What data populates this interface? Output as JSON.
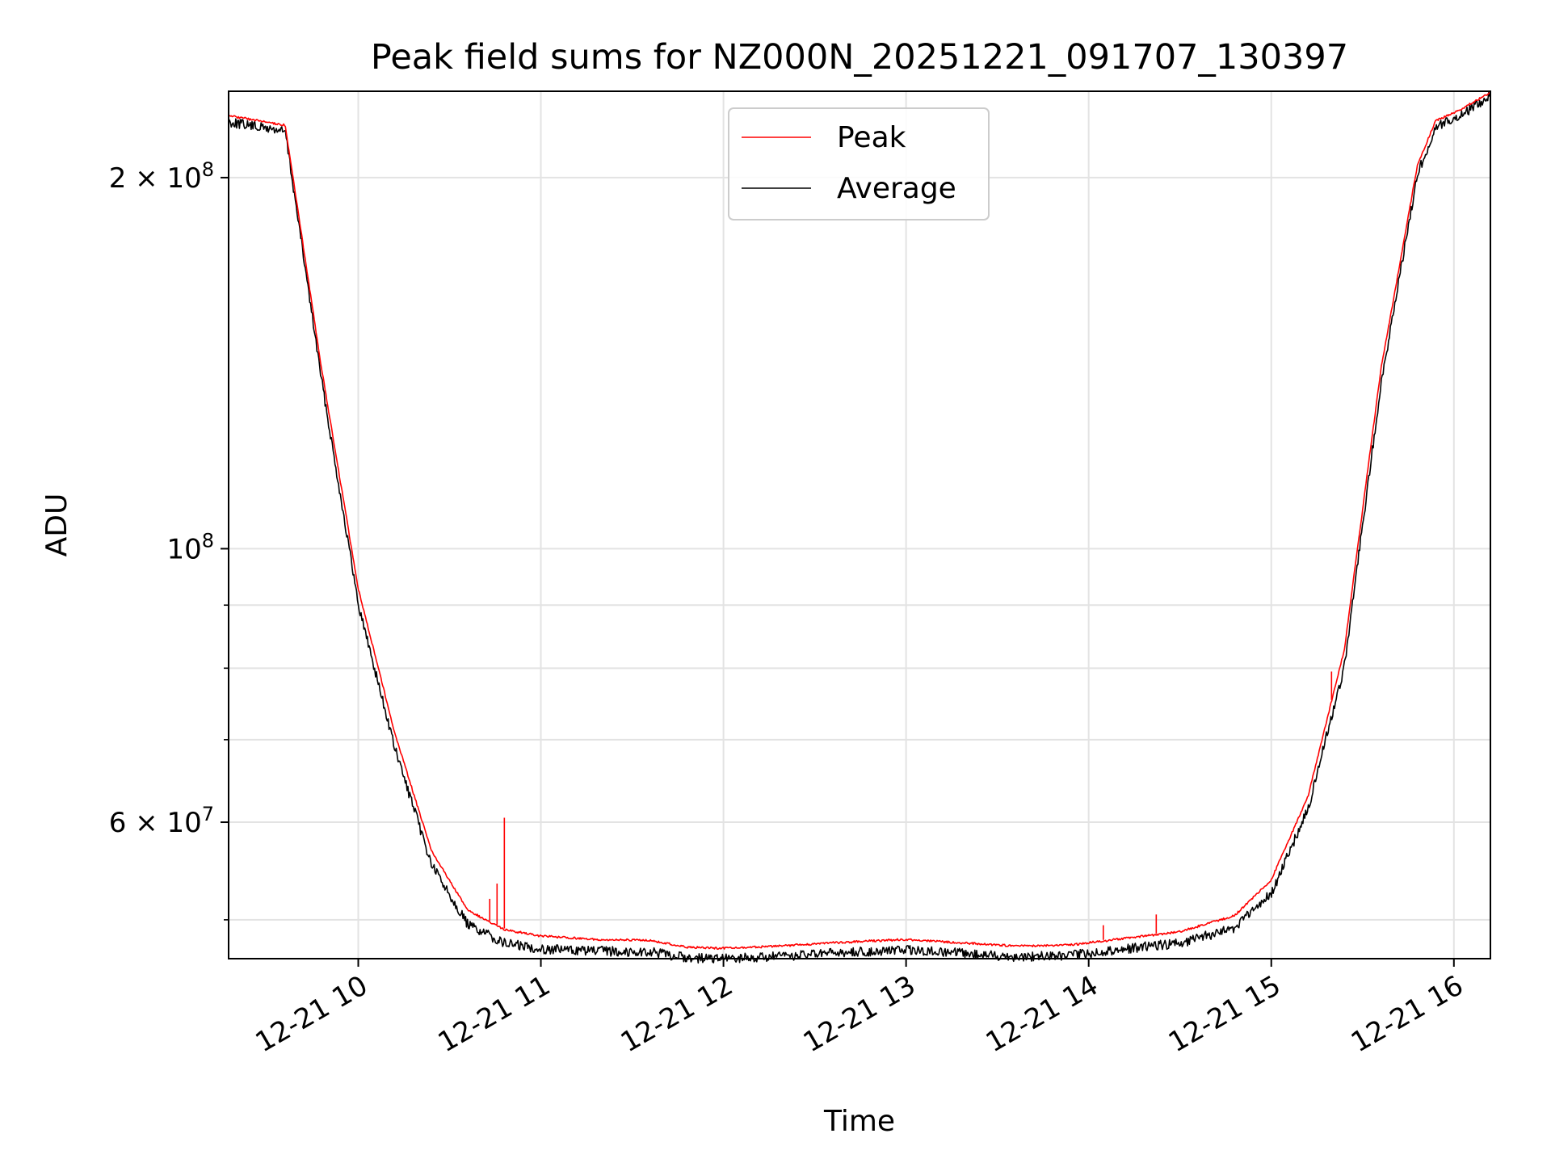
{
  "chart_data": {
    "type": "line",
    "title": "Peak field sums for NZ000N_20251221_091707_130397",
    "xlabel": "Time",
    "ylabel": "ADU",
    "yscale": "log",
    "xlim_hours": [
      9.29,
      16.2
    ],
    "ylim": [
      46500000,
      235000000
    ],
    "grid": true,
    "legend_position": "upper center",
    "x_ticks": [
      {
        "value": 10,
        "label": "12-21 10"
      },
      {
        "value": 11,
        "label": "12-21 11"
      },
      {
        "value": 12,
        "label": "12-21 12"
      },
      {
        "value": 13,
        "label": "12-21 13"
      },
      {
        "value": 14,
        "label": "12-21 14"
      },
      {
        "value": 15,
        "label": "12-21 15"
      },
      {
        "value": 16,
        "label": "12-21 16"
      }
    ],
    "y_ticks_labeled": [
      {
        "value": 200000000,
        "mantissa": "2",
        "exponent": "8",
        "label": "2 × 10^8"
      },
      {
        "value": 100000000,
        "mantissa": "",
        "exponent": "8",
        "label": "10^8"
      },
      {
        "value": 60000000,
        "mantissa": "6",
        "exponent": "7",
        "label": "6 × 10^7"
      }
    ],
    "y_ticks_minor": [
      50000000,
      70000000,
      80000000,
      90000000
    ],
    "series": [
      {
        "name": "Peak",
        "color": "#ff0000",
        "role": "peak",
        "x_hours": [
          9.29,
          9.6,
          9.8,
          10.0,
          10.2,
          10.4,
          10.6,
          10.8,
          11.0,
          11.3,
          11.6,
          11.8,
          12.0,
          12.3,
          12.6,
          13.0,
          13.3,
          13.6,
          13.9,
          14.2,
          14.5,
          14.8,
          15.0,
          15.2,
          15.4,
          15.6,
          15.8,
          15.9,
          16.0,
          16.2
        ],
        "values": [
          225000000,
          221000000,
          140000000,
          93000000,
          71000000,
          57000000,
          51000000,
          49200000,
          48600000,
          48300000,
          48200000,
          47600000,
          47500000,
          47700000,
          48000000,
          48300000,
          48000000,
          47700000,
          47800000,
          48400000,
          49000000,
          50500000,
          54000000,
          63000000,
          83000000,
          140000000,
          205000000,
          223000000,
          226000000,
          235000000
        ],
        "spikes": [
          {
            "x_hours": 10.72,
            "value": 52000000
          },
          {
            "x_hours": 10.76,
            "value": 53500000
          },
          {
            "x_hours": 10.8,
            "value": 60500000
          },
          {
            "x_hours": 14.08,
            "value": 49500000
          },
          {
            "x_hours": 14.37,
            "value": 50500000
          },
          {
            "x_hours": 15.33,
            "value": 79500000
          }
        ]
      },
      {
        "name": "Average",
        "color": "#000000",
        "role": "average",
        "x_hours": [
          9.29,
          9.6,
          9.8,
          10.0,
          10.2,
          10.4,
          10.6,
          10.8,
          11.0,
          11.3,
          11.6,
          11.8,
          12.0,
          12.3,
          12.6,
          13.0,
          13.3,
          13.6,
          13.9,
          14.2,
          14.5,
          14.8,
          15.0,
          15.2,
          15.4,
          15.6,
          15.8,
          15.9,
          16.0,
          16.2
        ],
        "values": [
          224000000,
          220000000,
          138000000,
          91000000,
          69500000,
          56000000,
          50000000,
          48300000,
          47800000,
          47600000,
          47500000,
          47000000,
          46900000,
          47100000,
          47400000,
          47700000,
          47400000,
          47100000,
          47200000,
          47800000,
          48300000,
          49700000,
          53000000,
          62000000,
          81000000,
          137000000,
          203000000,
          222000000,
          225000000,
          235000000
        ]
      }
    ]
  }
}
